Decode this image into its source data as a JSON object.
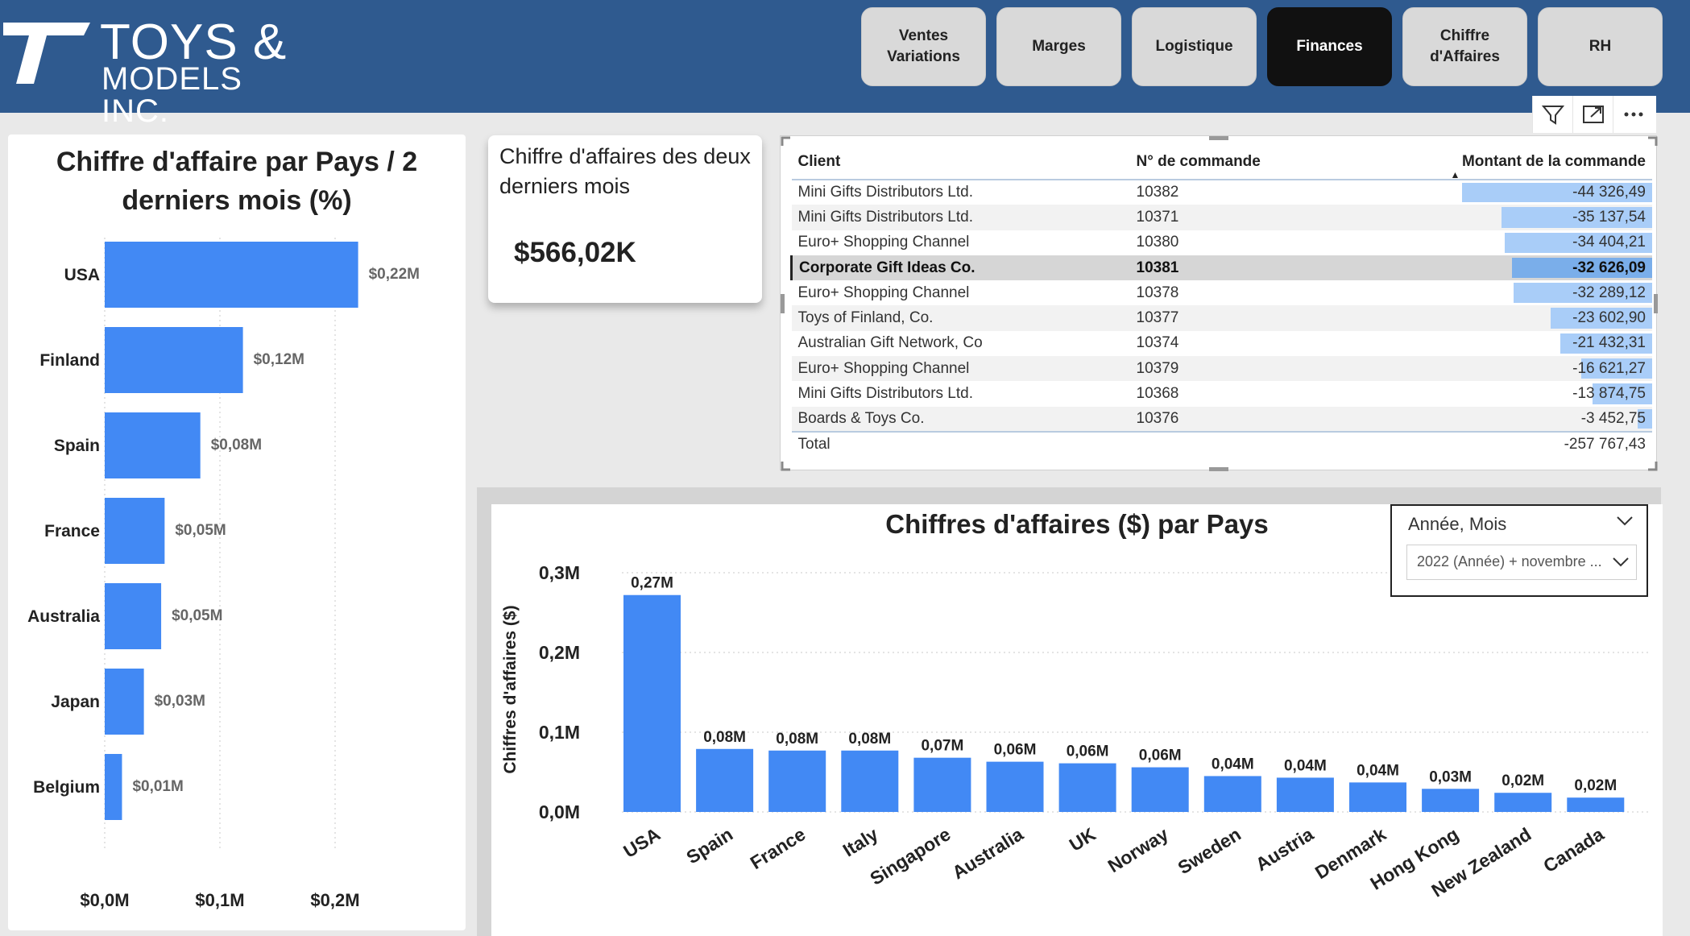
{
  "header": {
    "logo_line1": "TOYS &",
    "logo_line2": "MODELS INC.",
    "nav": [
      {
        "label": "Ventes\nVariations",
        "active": false
      },
      {
        "label": "Marges",
        "active": false
      },
      {
        "label": "Logistique",
        "active": false
      },
      {
        "label": "Finances",
        "active": true
      },
      {
        "label": "Chiffre d'Affaires",
        "active": false
      },
      {
        "label": "RH",
        "active": false
      }
    ],
    "colors": {
      "header_bg": "#2f5a8f",
      "active_button": "#111111",
      "button": "#d9d9d9"
    }
  },
  "visual_header": {
    "icons": [
      "filter-icon",
      "focus-mode-icon",
      "more-options-icon"
    ]
  },
  "kpi_card": {
    "title": "Chiffre d'affaires des deux derniers mois",
    "value": "$566,02K"
  },
  "orders_table": {
    "columns": [
      "Client",
      "N° de commande",
      "Montant de la commande"
    ],
    "rows": [
      {
        "client": "Mini Gifts Distributors Ltd.",
        "order": "10382",
        "amount": "-44 326,49",
        "value": -44326.49
      },
      {
        "client": "Mini Gifts Distributors Ltd.",
        "order": "10371",
        "amount": "-35 137,54",
        "value": -35137.54
      },
      {
        "client": "Euro+ Shopping Channel",
        "order": "10380",
        "amount": "-34 404,21",
        "value": -34404.21
      },
      {
        "client": "Corporate Gift Ideas Co.",
        "order": "10381",
        "amount": "-32 626,09",
        "value": -32626.09
      },
      {
        "client": "Euro+ Shopping Channel",
        "order": "10378",
        "amount": "-32 289,12",
        "value": -32289.12
      },
      {
        "client": "Toys of Finland, Co.",
        "order": "10377",
        "amount": "-23 602,90",
        "value": -23602.9
      },
      {
        "client": "Australian Gift Network, Co",
        "order": "10374",
        "amount": "-21 432,31",
        "value": -21432.31
      },
      {
        "client": "Euro+ Shopping Channel",
        "order": "10379",
        "amount": "-16 621,27",
        "value": -16621.27
      },
      {
        "client": "Mini Gifts Distributors Ltd.",
        "order": "10368",
        "amount": "-13 874,75",
        "value": -13874.75
      },
      {
        "client": "Boards & Toys Co.",
        "order": "10376",
        "amount": "-3 452,75",
        "value": -3452.75
      }
    ],
    "selected_row": 3,
    "total_label": "Total",
    "total_amount": "-257 767,43"
  },
  "slicer": {
    "label": "Année, Mois",
    "value": "2022 (Année) + novembre ..."
  },
  "chart_data": [
    {
      "type": "bar",
      "orientation": "horizontal",
      "title": "Chiffre d'affaire par Pays / 2 derniers mois (%)",
      "categories": [
        "USA",
        "Finland",
        "Spain",
        "France",
        "Australia",
        "Japan",
        "Belgium"
      ],
      "values": [
        0.22,
        0.12,
        0.083,
        0.052,
        0.049,
        0.034,
        0.015
      ],
      "data_labels": [
        "$0,22M",
        "$0,12M",
        "$0,08M",
        "$0,05M",
        "$0,05M",
        "$0,03M",
        "$0,01M"
      ],
      "xlabel": "",
      "ylabel": "",
      "xlim": [
        0,
        0.25
      ],
      "ticks": [
        0,
        0.1,
        0.2
      ],
      "tick_labels": [
        "$0,0M",
        "$0,1M",
        "$0,2M"
      ],
      "grid": true,
      "color": "#4289f4"
    },
    {
      "type": "bar",
      "orientation": "vertical",
      "title": "Chiffres d'affaires ($) par Pays",
      "categories": [
        "USA",
        "Spain",
        "France",
        "Italy",
        "Singapore",
        "Australia",
        "UK",
        "Norway",
        "Sweden",
        "Austria",
        "Denmark",
        "Hong Kong",
        "New Zealand",
        "Canada"
      ],
      "values": [
        0.272,
        0.079,
        0.077,
        0.077,
        0.068,
        0.063,
        0.061,
        0.056,
        0.045,
        0.043,
        0.037,
        0.029,
        0.024,
        0.018
      ],
      "data_labels": [
        "0,27M",
        "0,08M",
        "0,08M",
        "0,08M",
        "0,07M",
        "0,06M",
        "0,06M",
        "0,06M",
        "0,04M",
        "0,04M",
        "0,04M",
        "0,03M",
        "0,02M",
        "0,02M"
      ],
      "xlabel": "",
      "ylabel": "Chiffres d'affaires ($)",
      "ylim": [
        0,
        0.3
      ],
      "ticks": [
        0,
        0.1,
        0.2,
        0.3
      ],
      "tick_labels": [
        "0,0M",
        "0,1M",
        "0,2M",
        "0,3M"
      ],
      "grid": true,
      "color": "#4289f4"
    }
  ]
}
